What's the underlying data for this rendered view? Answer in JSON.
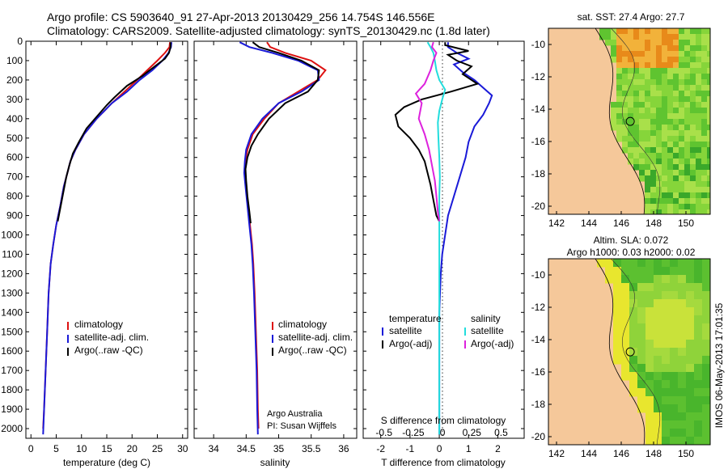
{
  "titles": {
    "line1": "Argo profile: CS 5903640_91 27-Apr-2013 20130429_256 14.754S 146.556E",
    "line2": "Climatology: CARS2009. Satellite-adjusted climatology: synTS_20130429.nc (1.8d later)"
  },
  "colors": {
    "climatology": "#dd1111",
    "satellite": "#1a1ad8",
    "argo": "#000000",
    "sat_salinity": "#22dddd",
    "argo_adj_salinity": "#dd22dd",
    "land": "#f5c89a"
  },
  "chart_data": [
    {
      "type": "line",
      "name": "temperature-profile",
      "xlabel": "temperature (deg C)",
      "ylabel": "",
      "xlim": [
        -1,
        31
      ],
      "ylim": [
        0,
        2050
      ],
      "xticks": [
        0,
        5,
        10,
        15,
        20,
        25,
        30
      ],
      "yticks": [
        0,
        100,
        200,
        300,
        400,
        500,
        600,
        700,
        800,
        900,
        1000,
        1100,
        1200,
        1300,
        1400,
        1500,
        1600,
        1700,
        1800,
        1900,
        2000
      ],
      "legend": [
        "climatology",
        "satellite-adj. clim.",
        "Argo(..raw -QC)"
      ],
      "series": [
        {
          "name": "climatology",
          "color": "#dd1111",
          "points": [
            [
              27.5,
              5
            ],
            [
              27.4,
              30
            ],
            [
              26.5,
              60
            ],
            [
              25,
              100
            ],
            [
              23,
              150
            ],
            [
              21,
              200
            ],
            [
              18.5,
              260
            ],
            [
              16,
              320
            ],
            [
              13,
              400
            ],
            [
              10.5,
              480
            ],
            [
              8.8,
              560
            ],
            [
              7.8,
              620
            ],
            [
              7.2,
              680
            ],
            [
              6.5,
              750
            ],
            [
              5.8,
              850
            ],
            [
              5,
              950
            ],
            [
              4.4,
              1050
            ],
            [
              3.9,
              1150
            ],
            [
              3.5,
              1300
            ],
            [
              3.2,
              1500
            ],
            [
              2.9,
              1700
            ],
            [
              2.6,
              1900
            ],
            [
              2.4,
              2000
            ]
          ]
        },
        {
          "name": "satellite-adj. clim.",
          "color": "#1a1ad8",
          "points": [
            [
              27.8,
              5
            ],
            [
              27.7,
              30
            ],
            [
              27.2,
              60
            ],
            [
              26,
              100
            ],
            [
              24,
              150
            ],
            [
              21.5,
              200
            ],
            [
              19,
              260
            ],
            [
              16,
              320
            ],
            [
              13,
              400
            ],
            [
              10.5,
              480
            ],
            [
              8.8,
              560
            ],
            [
              7.8,
              620
            ],
            [
              7.2,
              680
            ],
            [
              6.5,
              750
            ],
            [
              5.8,
              850
            ],
            [
              5,
              950
            ],
            [
              4.4,
              1050
            ],
            [
              3.9,
              1150
            ],
            [
              3.5,
              1300
            ],
            [
              3.2,
              1500
            ],
            [
              2.9,
              1700
            ],
            [
              2.6,
              1900
            ],
            [
              2.4,
              2030
            ]
          ]
        },
        {
          "name": "Argo(..raw -QC)",
          "color": "#000000",
          "points": [
            [
              27.6,
              5
            ],
            [
              27.6,
              30
            ],
            [
              27.3,
              60
            ],
            [
              26.5,
              90
            ],
            [
              24.5,
              130
            ],
            [
              22,
              180
            ],
            [
              19,
              230
            ],
            [
              16.5,
              290
            ],
            [
              15,
              330
            ],
            [
              13,
              390
            ],
            [
              11,
              450
            ],
            [
              9.5,
              520
            ],
            [
              8.3,
              580
            ],
            [
              7.6,
              640
            ],
            [
              7,
              700
            ],
            [
              6.4,
              780
            ],
            [
              5.9,
              850
            ],
            [
              5.3,
              930
            ]
          ]
        }
      ]
    },
    {
      "type": "line",
      "name": "salinity-profile",
      "xlabel": "salinity",
      "ylabel": "",
      "xlim": [
        33.7,
        36.2
      ],
      "ylim": [
        0,
        2050
      ],
      "xticks": [
        34,
        34.5,
        35,
        35.5,
        36
      ],
      "legend": [
        "climatology",
        "satellite-adj. clim.",
        "Argo(..raw -QC)"
      ],
      "annotation": [
        "Argo Australia",
        "PI: Susan Wijffels"
      ],
      "series": [
        {
          "name": "climatology",
          "color": "#dd1111",
          "points": [
            [
              34.82,
              5
            ],
            [
              34.87,
              30
            ],
            [
              35.1,
              60
            ],
            [
              35.5,
              100
            ],
            [
              35.72,
              150
            ],
            [
              35.6,
              200
            ],
            [
              35.3,
              260
            ],
            [
              35.0,
              320
            ],
            [
              34.78,
              400
            ],
            [
              34.6,
              480
            ],
            [
              34.52,
              560
            ],
            [
              34.49,
              620
            ],
            [
              34.48,
              680
            ],
            [
              34.5,
              750
            ],
            [
              34.53,
              850
            ],
            [
              34.56,
              950
            ],
            [
              34.59,
              1050
            ],
            [
              34.61,
              1150
            ],
            [
              34.63,
              1300
            ],
            [
              34.65,
              1500
            ],
            [
              34.67,
              1700
            ],
            [
              34.68,
              1900
            ],
            [
              34.69,
              2000
            ]
          ]
        },
        {
          "name": "satellite-adj. clim.",
          "color": "#1a1ad8",
          "points": [
            [
              34.4,
              5
            ],
            [
              34.55,
              30
            ],
            [
              34.9,
              60
            ],
            [
              35.3,
              100
            ],
            [
              35.6,
              150
            ],
            [
              35.62,
              200
            ],
            [
              35.35,
              260
            ],
            [
              35.0,
              320
            ],
            [
              34.75,
              400
            ],
            [
              34.58,
              480
            ],
            [
              34.5,
              560
            ],
            [
              34.48,
              620
            ],
            [
              34.47,
              680
            ],
            [
              34.49,
              750
            ],
            [
              34.52,
              850
            ],
            [
              34.55,
              950
            ],
            [
              34.58,
              1050
            ],
            [
              34.6,
              1150
            ],
            [
              34.62,
              1300
            ],
            [
              34.64,
              1500
            ],
            [
              34.66,
              1700
            ],
            [
              34.67,
              1900
            ],
            [
              34.68,
              2030
            ]
          ]
        },
        {
          "name": "Argo(..raw -QC)",
          "color": "#000000",
          "points": [
            [
              34.6,
              5
            ],
            [
              34.7,
              30
            ],
            [
              35.0,
              60
            ],
            [
              35.35,
              100
            ],
            [
              35.62,
              150
            ],
            [
              35.6,
              200
            ],
            [
              35.45,
              260
            ],
            [
              35.1,
              320
            ],
            [
              34.85,
              400
            ],
            [
              34.68,
              480
            ],
            [
              34.58,
              540
            ],
            [
              34.52,
              600
            ],
            [
              34.49,
              660
            ],
            [
              34.5,
              720
            ],
            [
              34.52,
              800
            ],
            [
              34.55,
              880
            ],
            [
              34.57,
              940
            ]
          ]
        }
      ]
    },
    {
      "type": "line",
      "name": "difference-profile",
      "xlabel": "T difference from climatology",
      "xlim": [
        -2.6,
        2.9
      ],
      "ylim": [
        0,
        2050
      ],
      "xticks": [
        -2,
        -1,
        0,
        1,
        2
      ],
      "x2label": "S difference from climatology",
      "x2ticks": [
        "-0.5",
        "-0.25",
        "0",
        "0.25",
        "0.5"
      ],
      "legend_titles": [
        "temperature",
        "salinity"
      ],
      "legend": [
        "satellite",
        "Argo(-adj)",
        "satellite",
        "Argo(-adj)"
      ],
      "series": [
        {
          "name": "temperature satellite",
          "color": "#1a1ad8",
          "points": [
            [
              0.3,
              5
            ],
            [
              0.3,
              30
            ],
            [
              0.6,
              60
            ],
            [
              1.0,
              90
            ],
            [
              0.5,
              120
            ],
            [
              0.8,
              160
            ],
            [
              1.2,
              200
            ],
            [
              1.5,
              240
            ],
            [
              1.8,
              280
            ],
            [
              1.7,
              320
            ],
            [
              1.5,
              380
            ],
            [
              1.2,
              440
            ],
            [
              1.0,
              520
            ],
            [
              0.9,
              600
            ],
            [
              0.7,
              700
            ],
            [
              0.5,
              800
            ],
            [
              0.3,
              900
            ],
            [
              0.2,
              1000
            ],
            [
              0.1,
              1100
            ],
            [
              0.05,
              1200
            ],
            [
              0.0,
              1400
            ],
            [
              0.0,
              1900
            ],
            [
              0.0,
              2030
            ]
          ]
        },
        {
          "name": "temperature Argo(-adj)",
          "color": "#000000",
          "points": [
            [
              0.2,
              5
            ],
            [
              0.2,
              20
            ],
            [
              1.0,
              50
            ],
            [
              0.3,
              70
            ],
            [
              0.6,
              100
            ],
            [
              1.1,
              130
            ],
            [
              0.8,
              170
            ],
            [
              1.3,
              220
            ],
            [
              0.4,
              260
            ],
            [
              -0.6,
              300
            ],
            [
              -1.2,
              340
            ],
            [
              -1.5,
              380
            ],
            [
              -1.4,
              440
            ],
            [
              -1.0,
              500
            ],
            [
              -0.7,
              560
            ],
            [
              -0.5,
              620
            ],
            [
              -0.4,
              680
            ],
            [
              -0.3,
              740
            ],
            [
              -0.2,
              820
            ],
            [
              -0.1,
              900
            ],
            [
              0.0,
              930
            ]
          ]
        },
        {
          "name": "salinity satellite",
          "color": "#22dddd",
          "points": [
            [
              -0.4,
              5
            ],
            [
              -0.3,
              30
            ],
            [
              -0.2,
              60
            ],
            [
              -0.15,
              100
            ],
            [
              -0.1,
              150
            ],
            [
              0.0,
              200
            ],
            [
              0.2,
              250
            ],
            [
              0.1,
              300
            ],
            [
              0.0,
              360
            ],
            [
              -0.05,
              420
            ],
            [
              -0.03,
              500
            ],
            [
              0.0,
              600
            ],
            [
              0.02,
              700
            ],
            [
              0.0,
              800
            ],
            [
              0.0,
              1000
            ],
            [
              0.0,
              1300
            ],
            [
              0.0,
              1600
            ],
            [
              0.0,
              1900
            ],
            [
              0.0,
              2030
            ]
          ]
        },
        {
          "name": "salinity Argo(-adj)",
          "color": "#dd22dd",
          "points": [
            [
              -0.2,
              5
            ],
            [
              -0.25,
              30
            ],
            [
              -0.1,
              60
            ],
            [
              -0.2,
              100
            ],
            [
              -0.3,
              150
            ],
            [
              -0.5,
              220
            ],
            [
              -0.8,
              270
            ],
            [
              -0.6,
              320
            ],
            [
              -0.7,
              400
            ],
            [
              -0.5,
              480
            ],
            [
              -0.35,
              560
            ],
            [
              -0.25,
              640
            ],
            [
              -0.15,
              720
            ],
            [
              -0.1,
              800
            ],
            [
              -0.05,
              880
            ],
            [
              0.0,
              930
            ]
          ]
        }
      ]
    },
    {
      "type": "heatmap",
      "name": "sst-map",
      "title": "sat. SST: 27.4  Argo: 27.7",
      "xlim": [
        141.5,
        151.5
      ],
      "ylim": [
        -20.5,
        -9
      ],
      "xticks": [
        142,
        144,
        146,
        148,
        150
      ],
      "yticks": [
        -10,
        -12,
        -14,
        -16,
        -18,
        -20
      ],
      "argo_position": [
        146.556,
        -14.754
      ]
    },
    {
      "type": "heatmap",
      "name": "sla-map",
      "title": "Altim. SLA: 0.072",
      "subtitle": "Argo h1000: 0.03  h2000: 0.02",
      "xlim": [
        141.5,
        151.5
      ],
      "ylim": [
        -20.5,
        -9
      ],
      "xticks": [
        142,
        144,
        146,
        148,
        150
      ],
      "yticks": [
        -10,
        -12,
        -14,
        -16,
        -18,
        -20
      ],
      "argo_position": [
        146.556,
        -14.754
      ]
    }
  ],
  "footer": {
    "stamp": "IMOS 06-May-2013 17:01:35"
  }
}
